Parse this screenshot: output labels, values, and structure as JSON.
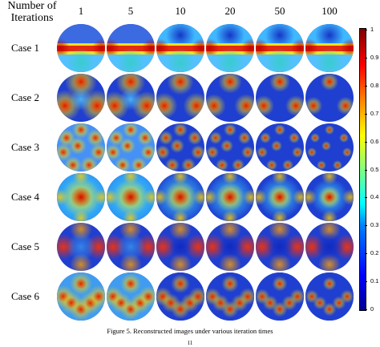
{
  "header": {
    "line1": "Number of",
    "line2": "Iterations"
  },
  "columns": [
    "1",
    "5",
    "10",
    "20",
    "50",
    "100"
  ],
  "rows": [
    "Case 1",
    "Case 2",
    "Case 3",
    "Case 4",
    "Case 5",
    "Case 6"
  ],
  "colorbar": {
    "ticks": [
      "1",
      "0.9",
      "0.8",
      "0.7",
      "0.6",
      "0.5",
      "0.4",
      "0.3",
      "0.2",
      "0.1",
      "0"
    ],
    "colormap": "jet",
    "colors": {
      "low": "#00008f",
      "mid": "#80ff80",
      "high": "#800000"
    }
  },
  "caption": "Figure 5.    Reconstructed images under various iteration times",
  "page_number": "11"
}
